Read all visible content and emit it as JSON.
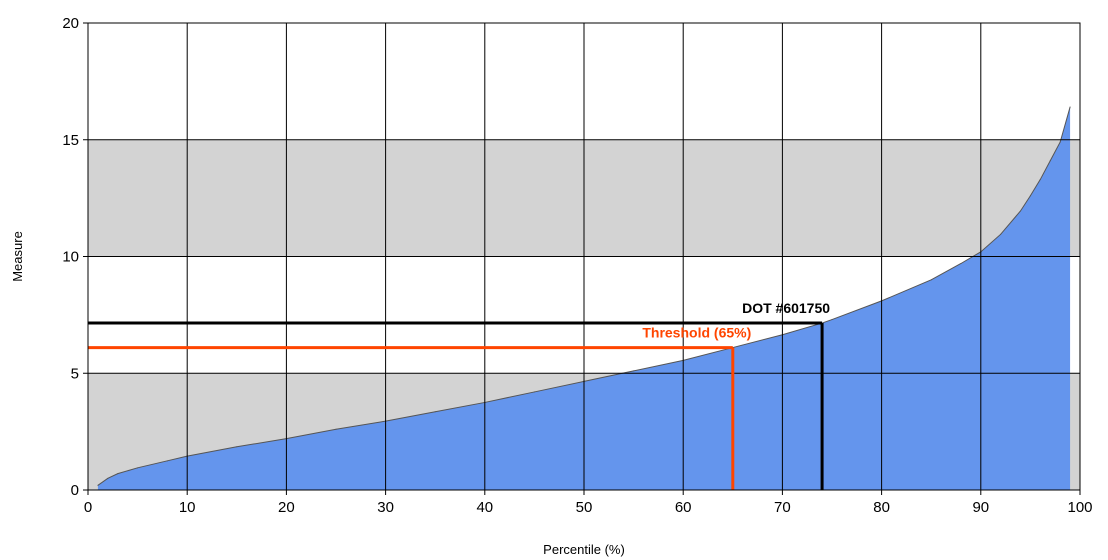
{
  "chart_data": {
    "type": "area",
    "xlabel": "Percentile (%)",
    "ylabel": "Measure",
    "xlim": [
      0,
      100
    ],
    "ylim": [
      0,
      20
    ],
    "x_ticks": [
      0,
      10,
      20,
      30,
      40,
      50,
      60,
      70,
      80,
      90,
      100
    ],
    "y_ticks": [
      0,
      5,
      10,
      15,
      20
    ],
    "x_tick_labels": [
      "0",
      "10",
      "20",
      "30",
      "40",
      "50",
      "60",
      "70",
      "80",
      "90",
      "100"
    ],
    "y_tick_labels": [
      "0",
      "5",
      "10",
      "15",
      "20"
    ],
    "grid": true,
    "shaded_bands": [
      [
        0,
        5
      ],
      [
        10,
        15
      ]
    ],
    "series": [
      {
        "color": "#6495ED",
        "x": [
          1,
          2,
          3,
          5,
          8,
          10,
          15,
          20,
          25,
          30,
          35,
          40,
          45,
          50,
          55,
          60,
          65,
          70,
          74,
          75,
          80,
          85,
          88,
          90,
          92,
          94,
          95,
          96,
          97,
          98,
          99
        ],
        "y": [
          0.2,
          0.5,
          0.7,
          0.95,
          1.25,
          1.45,
          1.85,
          2.2,
          2.6,
          2.95,
          3.35,
          3.75,
          4.2,
          4.65,
          5.1,
          5.55,
          6.1,
          6.65,
          7.15,
          7.3,
          8.1,
          9.0,
          9.7,
          10.2,
          10.95,
          11.95,
          12.6,
          13.3,
          14.1,
          14.9,
          16.4
        ]
      }
    ],
    "markers": [
      {
        "label": "Threshold (65%)",
        "x": 65,
        "y": 6.1,
        "color": "#FF4500"
      },
      {
        "label": "DOT #601750",
        "x": 74,
        "y": 7.15,
        "color": "#000000"
      }
    ]
  }
}
